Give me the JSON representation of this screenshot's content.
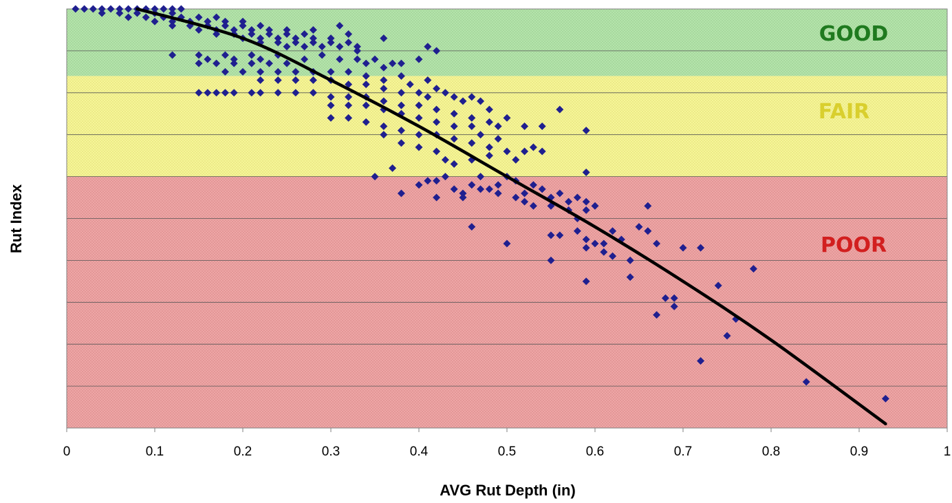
{
  "chart_data": {
    "type": "scatter",
    "title": "",
    "xlabel": "AVG Rut Depth (in)",
    "ylabel": "Rut Index",
    "xlim": [
      0,
      1
    ],
    "ylim": [
      0,
      100
    ],
    "x_ticks": [
      "0",
      "0.1",
      "0.2",
      "0.3",
      "0.4",
      "0.5",
      "0.6",
      "0.7",
      "0.8",
      "0.9",
      "1"
    ],
    "y_ticks_visible": false,
    "grid": "horizontal",
    "legend": "none",
    "bands": [
      {
        "label": "GOOD",
        "from": 84,
        "to": 100,
        "fill": "#b6e6ad",
        "label_color": "#1f7a1f"
      },
      {
        "label": "FAIR",
        "from": 60,
        "to": 84,
        "fill": "#f8f79a",
        "label_color": "#d9cf2e"
      },
      {
        "label": "POOR",
        "from": 0,
        "to": 60,
        "fill": "#f0a8a8",
        "label_color": "#d21f1f"
      }
    ],
    "marker_color": "#1f1f8f",
    "trend_color": "#000000",
    "trend_line": [
      [
        0.08,
        100
      ],
      [
        0.2,
        93
      ],
      [
        0.3,
        83
      ],
      [
        0.4,
        72
      ],
      [
        0.5,
        60
      ],
      [
        0.6,
        48
      ],
      [
        0.7,
        35
      ],
      [
        0.8,
        21
      ],
      [
        0.93,
        1
      ]
    ],
    "points": [
      [
        0.01,
        100
      ],
      [
        0.02,
        100
      ],
      [
        0.03,
        100
      ],
      [
        0.04,
        100
      ],
      [
        0.05,
        100
      ],
      [
        0.06,
        100
      ],
      [
        0.07,
        100
      ],
      [
        0.08,
        100
      ],
      [
        0.09,
        100
      ],
      [
        0.1,
        100
      ],
      [
        0.11,
        100
      ],
      [
        0.12,
        100
      ],
      [
        0.13,
        100
      ],
      [
        0.04,
        99
      ],
      [
        0.06,
        99
      ],
      [
        0.08,
        99
      ],
      [
        0.1,
        99
      ],
      [
        0.12,
        99
      ],
      [
        0.07,
        98
      ],
      [
        0.09,
        98
      ],
      [
        0.11,
        98
      ],
      [
        0.13,
        98
      ],
      [
        0.15,
        98
      ],
      [
        0.17,
        98
      ],
      [
        0.1,
        97
      ],
      [
        0.12,
        97
      ],
      [
        0.14,
        97
      ],
      [
        0.16,
        97
      ],
      [
        0.18,
        97
      ],
      [
        0.2,
        97
      ],
      [
        0.12,
        96
      ],
      [
        0.14,
        96
      ],
      [
        0.16,
        96
      ],
      [
        0.18,
        96
      ],
      [
        0.2,
        96
      ],
      [
        0.22,
        96
      ],
      [
        0.15,
        95
      ],
      [
        0.17,
        95
      ],
      [
        0.19,
        95
      ],
      [
        0.21,
        95
      ],
      [
        0.23,
        95
      ],
      [
        0.25,
        95
      ],
      [
        0.17,
        94
      ],
      [
        0.19,
        94
      ],
      [
        0.21,
        94
      ],
      [
        0.23,
        94
      ],
      [
        0.25,
        94
      ],
      [
        0.27,
        94
      ],
      [
        0.2,
        93
      ],
      [
        0.22,
        93
      ],
      [
        0.24,
        93
      ],
      [
        0.26,
        93
      ],
      [
        0.28,
        93
      ],
      [
        0.3,
        93
      ],
      [
        0.22,
        92
      ],
      [
        0.24,
        92
      ],
      [
        0.26,
        92
      ],
      [
        0.28,
        92
      ],
      [
        0.3,
        92
      ],
      [
        0.32,
        92
      ],
      [
        0.25,
        91
      ],
      [
        0.27,
        91
      ],
      [
        0.29,
        91
      ],
      [
        0.31,
        91
      ],
      [
        0.33,
        91
      ],
      [
        0.28,
        95
      ],
      [
        0.32,
        94
      ],
      [
        0.33,
        90
      ],
      [
        0.31,
        96
      ],
      [
        0.36,
        93
      ],
      [
        0.41,
        91
      ],
      [
        0.42,
        90
      ],
      [
        0.38,
        87
      ],
      [
        0.4,
        88
      ],
      [
        0.12,
        89
      ],
      [
        0.15,
        89
      ],
      [
        0.16,
        88
      ],
      [
        0.18,
        89
      ],
      [
        0.19,
        88
      ],
      [
        0.21,
        89
      ],
      [
        0.22,
        88
      ],
      [
        0.24,
        89
      ],
      [
        0.15,
        87
      ],
      [
        0.17,
        87
      ],
      [
        0.19,
        87
      ],
      [
        0.21,
        87
      ],
      [
        0.23,
        87
      ],
      [
        0.25,
        87
      ],
      [
        0.27,
        88
      ],
      [
        0.29,
        89
      ],
      [
        0.31,
        88
      ],
      [
        0.33,
        88
      ],
      [
        0.34,
        87
      ],
      [
        0.36,
        86
      ],
      [
        0.35,
        88
      ],
      [
        0.37,
        87
      ],
      [
        0.18,
        85
      ],
      [
        0.2,
        85
      ],
      [
        0.22,
        85
      ],
      [
        0.24,
        85
      ],
      [
        0.26,
        85
      ],
      [
        0.28,
        85
      ],
      [
        0.3,
        85
      ],
      [
        0.32,
        85
      ],
      [
        0.34,
        84
      ],
      [
        0.36,
        83
      ],
      [
        0.38,
        84
      ],
      [
        0.39,
        82
      ],
      [
        0.22,
        83
      ],
      [
        0.24,
        83
      ],
      [
        0.26,
        83
      ],
      [
        0.28,
        83
      ],
      [
        0.3,
        83
      ],
      [
        0.32,
        82
      ],
      [
        0.34,
        82
      ],
      [
        0.36,
        81
      ],
      [
        0.38,
        80
      ],
      [
        0.4,
        80
      ],
      [
        0.41,
        79
      ],
      [
        0.41,
        83
      ],
      [
        0.42,
        81
      ],
      [
        0.43,
        80
      ],
      [
        0.44,
        79
      ],
      [
        0.45,
        78
      ],
      [
        0.46,
        79
      ],
      [
        0.47,
        78
      ],
      [
        0.48,
        76
      ],
      [
        0.15,
        80
      ],
      [
        0.16,
        80
      ],
      [
        0.17,
        80
      ],
      [
        0.18,
        80
      ],
      [
        0.19,
        80
      ],
      [
        0.21,
        80
      ],
      [
        0.22,
        80
      ],
      [
        0.24,
        80
      ],
      [
        0.26,
        80
      ],
      [
        0.28,
        80
      ],
      [
        0.3,
        79
      ],
      [
        0.32,
        79
      ],
      [
        0.34,
        79
      ],
      [
        0.36,
        78
      ],
      [
        0.38,
        77
      ],
      [
        0.4,
        77
      ],
      [
        0.42,
        76
      ],
      [
        0.44,
        75
      ],
      [
        0.46,
        74
      ],
      [
        0.48,
        73
      ],
      [
        0.3,
        77
      ],
      [
        0.32,
        77
      ],
      [
        0.34,
        77
      ],
      [
        0.36,
        76
      ],
      [
        0.38,
        75
      ],
      [
        0.4,
        74
      ],
      [
        0.42,
        73
      ],
      [
        0.44,
        72
      ],
      [
        0.46,
        72
      ],
      [
        0.47,
        70
      ],
      [
        0.49,
        69
      ],
      [
        0.3,
        74
      ],
      [
        0.32,
        74
      ],
      [
        0.34,
        73
      ],
      [
        0.36,
        72
      ],
      [
        0.38,
        71
      ],
      [
        0.4,
        70
      ],
      [
        0.42,
        70
      ],
      [
        0.44,
        69
      ],
      [
        0.46,
        68
      ],
      [
        0.48,
        67
      ],
      [
        0.36,
        70
      ],
      [
        0.38,
        68
      ],
      [
        0.4,
        67
      ],
      [
        0.42,
        66
      ],
      [
        0.43,
        64
      ],
      [
        0.44,
        63
      ],
      [
        0.46,
        64
      ],
      [
        0.48,
        65
      ],
      [
        0.5,
        66
      ],
      [
        0.51,
        64
      ],
      [
        0.52,
        66
      ],
      [
        0.53,
        67
      ],
      [
        0.54,
        66
      ],
      [
        0.49,
        72
      ],
      [
        0.5,
        74
      ],
      [
        0.52,
        72
      ],
      [
        0.54,
        72
      ],
      [
        0.56,
        76
      ],
      [
        0.59,
        71
      ],
      [
        0.59,
        61
      ],
      [
        0.35,
        60
      ],
      [
        0.37,
        62
      ],
      [
        0.4,
        58
      ],
      [
        0.41,
        59
      ],
      [
        0.42,
        59
      ],
      [
        0.43,
        60
      ],
      [
        0.44,
        57
      ],
      [
        0.45,
        56
      ],
      [
        0.46,
        58
      ],
      [
        0.47,
        60
      ],
      [
        0.48,
        57
      ],
      [
        0.49,
        58
      ],
      [
        0.5,
        60
      ],
      [
        0.51,
        59
      ],
      [
        0.52,
        56
      ],
      [
        0.53,
        58
      ],
      [
        0.54,
        57
      ],
      [
        0.55,
        55
      ],
      [
        0.56,
        56
      ],
      [
        0.57,
        54
      ],
      [
        0.58,
        55
      ],
      [
        0.59,
        54
      ],
      [
        0.6,
        53
      ],
      [
        0.38,
        56
      ],
      [
        0.42,
        55
      ],
      [
        0.45,
        55
      ],
      [
        0.47,
        57
      ],
      [
        0.49,
        56
      ],
      [
        0.51,
        55
      ],
      [
        0.52,
        54
      ],
      [
        0.53,
        53
      ],
      [
        0.55,
        53
      ],
      [
        0.57,
        52
      ],
      [
        0.58,
        50
      ],
      [
        0.59,
        52
      ],
      [
        0.46,
        48
      ],
      [
        0.5,
        44
      ],
      [
        0.55,
        46
      ],
      [
        0.56,
        46
      ],
      [
        0.58,
        47
      ],
      [
        0.59,
        45
      ],
      [
        0.59,
        43
      ],
      [
        0.6,
        44
      ],
      [
        0.61,
        44
      ],
      [
        0.62,
        41
      ],
      [
        0.61,
        42
      ],
      [
        0.62,
        47
      ],
      [
        0.63,
        45
      ],
      [
        0.64,
        40
      ],
      [
        0.65,
        48
      ],
      [
        0.66,
        47
      ],
      [
        0.67,
        44
      ],
      [
        0.66,
        53
      ],
      [
        0.7,
        43
      ],
      [
        0.72,
        43
      ],
      [
        0.55,
        40
      ],
      [
        0.59,
        35
      ],
      [
        0.64,
        36
      ],
      [
        0.67,
        27
      ],
      [
        0.68,
        31
      ],
      [
        0.69,
        31
      ],
      [
        0.69,
        29
      ],
      [
        0.72,
        16
      ],
      [
        0.74,
        34
      ],
      [
        0.75,
        22
      ],
      [
        0.76,
        26
      ],
      [
        0.78,
        38
      ],
      [
        0.84,
        11
      ],
      [
        0.93,
        7
      ]
    ]
  }
}
